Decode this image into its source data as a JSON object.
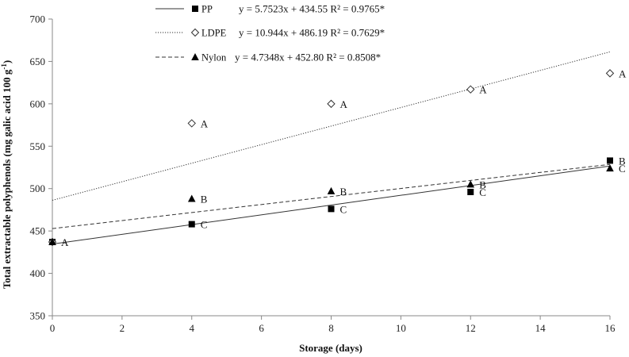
{
  "chart_data": {
    "type": "scatter",
    "xlabel": "Storage (days)",
    "ylabel": "Total extractable polyphenols (mg galic acid 100 g",
    "ylabel_sup": "-1",
    "ylabel_end": ")",
    "xlim": [
      0,
      16
    ],
    "ylim": [
      350,
      700
    ],
    "x_ticks": [
      0,
      2,
      4,
      6,
      8,
      10,
      12,
      14,
      16
    ],
    "y_ticks": [
      350,
      400,
      450,
      500,
      550,
      600,
      650,
      700
    ],
    "grid": false,
    "legend_position": "top",
    "series": [
      {
        "name": "PP",
        "marker": "square-filled",
        "line_style": "solid",
        "equation": "y = 5.7523x + 434.55 R² = 0.9765*",
        "slope": 5.7523,
        "intercept": 434.55,
        "points": [
          {
            "x": 0,
            "y": 437,
            "label": "A"
          },
          {
            "x": 4,
            "y": 458,
            "label": "C"
          },
          {
            "x": 8,
            "y": 476,
            "label": "C"
          },
          {
            "x": 12,
            "y": 496,
            "label": "C"
          },
          {
            "x": 16,
            "y": 533,
            "label": "B"
          }
        ]
      },
      {
        "name": "LDPE",
        "marker": "diamond-open",
        "line_style": "dotted",
        "equation": "y = 10.944x + 486.19 R² = 0.7629*",
        "slope": 10.944,
        "intercept": 486.19,
        "points": [
          {
            "x": 0,
            "y": 437,
            "label": ""
          },
          {
            "x": 4,
            "y": 577,
            "label": "A"
          },
          {
            "x": 8,
            "y": 600,
            "label": "A"
          },
          {
            "x": 12,
            "y": 617,
            "label": "A"
          },
          {
            "x": 16,
            "y": 636,
            "label": "A"
          }
        ]
      },
      {
        "name": "Nylon",
        "marker": "triangle-filled",
        "line_style": "dashed",
        "equation": "y = 4.7348x + 452.80 R² = 0.8508*",
        "slope": 4.7348,
        "intercept": 452.8,
        "points": [
          {
            "x": 0,
            "y": 437,
            "label": ""
          },
          {
            "x": 4,
            "y": 488,
            "label": "B"
          },
          {
            "x": 8,
            "y": 497,
            "label": "B"
          },
          {
            "x": 12,
            "y": 505,
            "label": "B"
          },
          {
            "x": 16,
            "y": 524,
            "label": "C"
          }
        ]
      }
    ]
  }
}
